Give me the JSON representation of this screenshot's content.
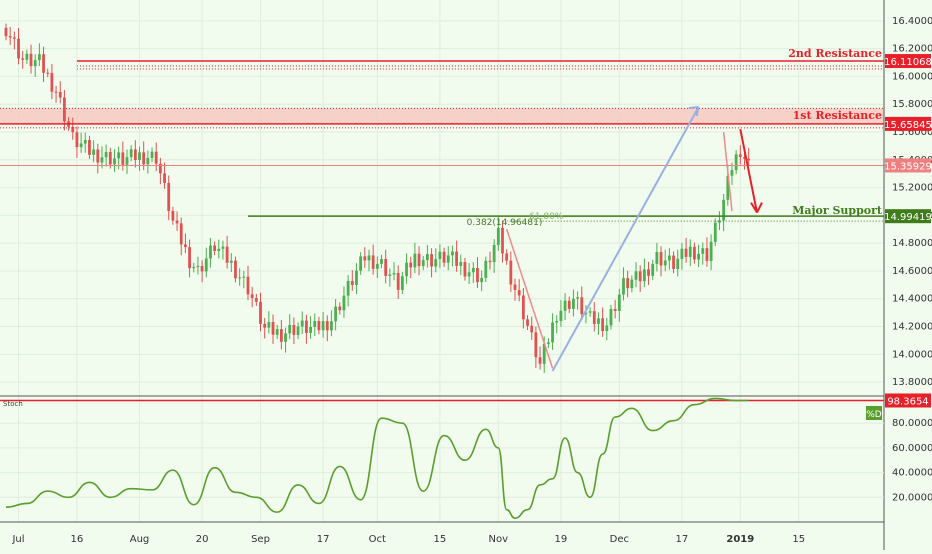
{
  "chart_data": [
    {
      "type": "candlestick",
      "title": "",
      "ylim": [
        13.7,
        16.55
      ],
      "y_ticks": [
        "16.40000",
        "16.20000",
        "16.00000",
        "15.80000",
        "15.60000",
        "15.40000",
        "15.20000",
        "15.00000",
        "14.80000",
        "14.60000",
        "14.40000",
        "14.20000",
        "14.00000",
        "13.80000"
      ],
      "y_tick_values": [
        16.4,
        16.2,
        16.0,
        15.8,
        15.6,
        15.4,
        15.2,
        15.0,
        14.8,
        14.6,
        14.4,
        14.2,
        14.0,
        13.8
      ],
      "x_ticks": [
        "Jul",
        "16",
        "Aug",
        "20",
        "Sep",
        "17",
        "Oct",
        "15",
        "Nov",
        "19",
        "Dec",
        "17",
        "2019",
        "15"
      ],
      "x_tick_index": [
        3,
        17,
        32,
        47,
        61,
        76,
        89,
        104,
        118,
        133,
        147,
        162,
        176,
        190
      ],
      "x_count": 210,
      "last_index": 178,
      "close_path_index": [
        0,
        4,
        8,
        12,
        16,
        20,
        24,
        28,
        32,
        36,
        40,
        44,
        46,
        50,
        54,
        58,
        62,
        66,
        70,
        74,
        78,
        82,
        86,
        90,
        94,
        98,
        102,
        106,
        110,
        114,
        118,
        120,
        124,
        128,
        132,
        136,
        140,
        144,
        148,
        152,
        156,
        160,
        164,
        168,
        170,
        172,
        174,
        176,
        178
      ],
      "close_path_values": [
        16.35,
        16.12,
        16.1,
        15.9,
        15.55,
        15.46,
        15.42,
        15.4,
        15.43,
        15.42,
        14.95,
        14.68,
        14.6,
        14.78,
        14.65,
        14.48,
        14.18,
        14.15,
        14.2,
        14.18,
        14.25,
        14.48,
        14.7,
        14.65,
        14.5,
        14.7,
        14.68,
        14.7,
        14.62,
        14.55,
        14.85,
        14.65,
        14.3,
        13.92,
        14.3,
        14.4,
        14.25,
        14.22,
        14.5,
        14.55,
        14.7,
        14.65,
        14.75,
        14.72,
        14.9,
        15.1,
        15.35,
        15.48,
        15.36
      ],
      "current_price": "15.35929",
      "levels": [
        {
          "name": "2nd Resistance",
          "value": 16.11068,
          "value_label": "16.11068",
          "color": "#e8202a"
        },
        {
          "name": "1st Resistance",
          "value": 15.65845,
          "value_label": "15.65845",
          "zone_top": 15.77,
          "color": "#e8202a"
        },
        {
          "name": "Major Support",
          "value": 14.99419,
          "value_label": "14.99419",
          "color": "#3f7d1c"
        }
      ],
      "fib_labels": [
        "0.382(14.96481)",
        "61.80%"
      ],
      "current_price_color": "#f08080"
    },
    {
      "type": "line",
      "title": "Stoch",
      "series": [
        {
          "name": "%D",
          "color": "#5a9e2e"
        }
      ],
      "y_ticks": [
        "80.0000",
        "60.0000",
        "40.0000",
        "20.0000"
      ],
      "y_tick_values": [
        80,
        60,
        40,
        20
      ],
      "ylim": [
        0,
        102
      ],
      "x_index": [
        0,
        5,
        10,
        15,
        20,
        25,
        30,
        35,
        40,
        45,
        50,
        55,
        60,
        65,
        70,
        75,
        80,
        85,
        90,
        95,
        100,
        105,
        110,
        115,
        118,
        120,
        122,
        125,
        128,
        131,
        134,
        137,
        140,
        143,
        146,
        150,
        155,
        160,
        165,
        170,
        175,
        178
      ],
      "values": [
        12,
        15,
        25,
        20,
        32,
        20,
        27,
        26,
        42,
        14,
        44,
        24,
        20,
        8,
        30,
        15,
        45,
        18,
        84,
        80,
        25,
        70,
        50,
        75,
        60,
        10,
        3,
        10,
        30,
        35,
        68,
        40,
        20,
        55,
        85,
        92,
        74,
        82,
        95,
        100,
        98.3654,
        98.3654
      ],
      "last_value_label": "98.3654"
    }
  ]
}
